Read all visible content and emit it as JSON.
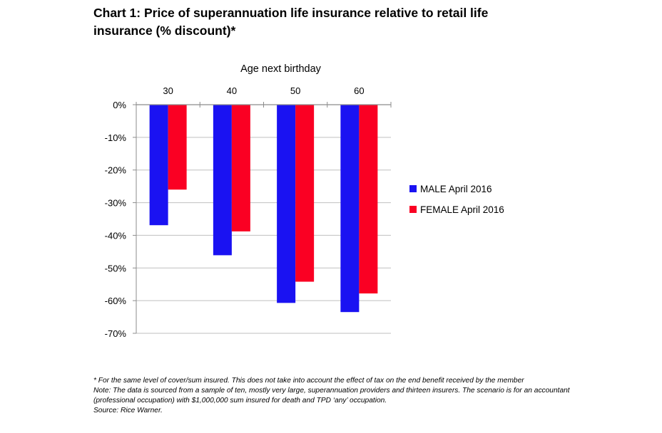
{
  "title": "Chart 1: Price of superannuation life insurance relative to retail life insurance (% discount)*",
  "footnotes": [
    "* For the same level of cover/sum insured. This does not take into account the effect of tax on the end benefit received by the member",
    "Note: The data is sourced from a sample of ten, mostly very large, superannuation providers and thirteen insurers. The scenario is for an accountant",
    "(professional occupation) with $1,000,000 sum insured for death and TPD ‘any’ occupation.",
    "Source: Rice Warner."
  ],
  "chart_data": {
    "type": "bar",
    "xlabel": "Age next birthday",
    "ylabel": "",
    "categories": [
      "30",
      "40",
      "50",
      "60"
    ],
    "ylim": [
      -70,
      0
    ],
    "yticks": [
      0,
      -10,
      -20,
      -30,
      -40,
      -50,
      -60,
      -70
    ],
    "ytick_format": "percent",
    "grid": true,
    "legend_position": "right",
    "series": [
      {
        "name": "MALE April 2016",
        "color": "#1a12f2",
        "values": [
          -36.9,
          -46.1,
          -60.7,
          -63.5
        ]
      },
      {
        "name": "FEMALE April 2016",
        "color": "#fa0023",
        "values": [
          -26,
          -38.8,
          -54.2,
          -57.8
        ]
      }
    ]
  }
}
